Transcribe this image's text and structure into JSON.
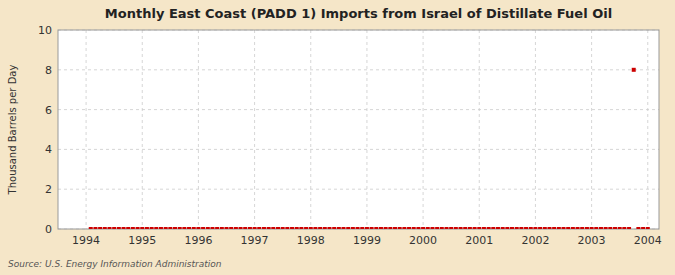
{
  "chart_data": {
    "type": "scatter",
    "title": "Monthly East Coast (PADD 1) Imports from Israel of Distillate Fuel Oil",
    "ylabel": "Thousand Barrels per Day",
    "source": "Source: U.S. Energy Information Administration",
    "x": [
      1994.083,
      1994.167,
      1994.25,
      1994.333,
      1994.417,
      1994.5,
      1994.583,
      1994.667,
      1994.75,
      1994.833,
      1994.917,
      1995.0,
      1995.083,
      1995.167,
      1995.25,
      1995.333,
      1995.417,
      1995.5,
      1995.583,
      1995.667,
      1995.75,
      1995.833,
      1995.917,
      1996.0,
      1996.083,
      1996.167,
      1996.25,
      1996.333,
      1996.417,
      1996.5,
      1996.583,
      1996.667,
      1996.75,
      1996.833,
      1996.917,
      1997.0,
      1997.083,
      1997.167,
      1997.25,
      1997.333,
      1997.417,
      1997.5,
      1997.583,
      1997.667,
      1997.75,
      1997.833,
      1997.917,
      1998.0,
      1998.083,
      1998.167,
      1998.25,
      1998.333,
      1998.417,
      1998.5,
      1998.583,
      1998.667,
      1998.75,
      1998.833,
      1998.917,
      1999.0,
      1999.083,
      1999.167,
      1999.25,
      1999.333,
      1999.417,
      1999.5,
      1999.583,
      1999.667,
      1999.75,
      1999.833,
      1999.917,
      2000.0,
      2000.083,
      2000.167,
      2000.25,
      2000.333,
      2000.417,
      2000.5,
      2000.583,
      2000.667,
      2000.75,
      2000.833,
      2000.917,
      2001.0,
      2001.083,
      2001.167,
      2001.25,
      2001.333,
      2001.417,
      2001.5,
      2001.583,
      2001.667,
      2001.75,
      2001.833,
      2001.917,
      2002.0,
      2002.083,
      2002.167,
      2002.25,
      2002.333,
      2002.417,
      2002.5,
      2002.583,
      2002.667,
      2002.75,
      2002.833,
      2002.917,
      2003.0,
      2003.083,
      2003.167,
      2003.25,
      2003.333,
      2003.417,
      2003.5,
      2003.583,
      2003.667,
      2003.75,
      2003.833,
      2003.917,
      2004.0
    ],
    "values": [
      0,
      0,
      0,
      0,
      0,
      0,
      0,
      0,
      0,
      0,
      0,
      0,
      0,
      0,
      0,
      0,
      0,
      0,
      0,
      0,
      0,
      0,
      0,
      0,
      0,
      0,
      0,
      0,
      0,
      0,
      0,
      0,
      0,
      0,
      0,
      0,
      0,
      0,
      0,
      0,
      0,
      0,
      0,
      0,
      0,
      0,
      0,
      0,
      0,
      0,
      0,
      0,
      0,
      0,
      0,
      0,
      0,
      0,
      0,
      0,
      0,
      0,
      0,
      0,
      0,
      0,
      0,
      0,
      0,
      0,
      0,
      0,
      0,
      0,
      0,
      0,
      0,
      0,
      0,
      0,
      0,
      0,
      0,
      0,
      0,
      0,
      0,
      0,
      0,
      0,
      0,
      0,
      0,
      0,
      0,
      0,
      0,
      0,
      0,
      0,
      0,
      0,
      0,
      0,
      0,
      0,
      0,
      0,
      0,
      0,
      0,
      0,
      0,
      0,
      0,
      0,
      8,
      0,
      0,
      0
    ],
    "color": "#cc0000",
    "marker": "square",
    "xlim": [
      1993.5,
      2004.2
    ],
    "xticks": [
      1994,
      1995,
      1996,
      1997,
      1998,
      1999,
      2000,
      2001,
      2002,
      2003,
      2004
    ],
    "ylim": [
      0,
      10
    ],
    "yticks": [
      0,
      2,
      4,
      6,
      8,
      10
    ],
    "grid": true
  }
}
